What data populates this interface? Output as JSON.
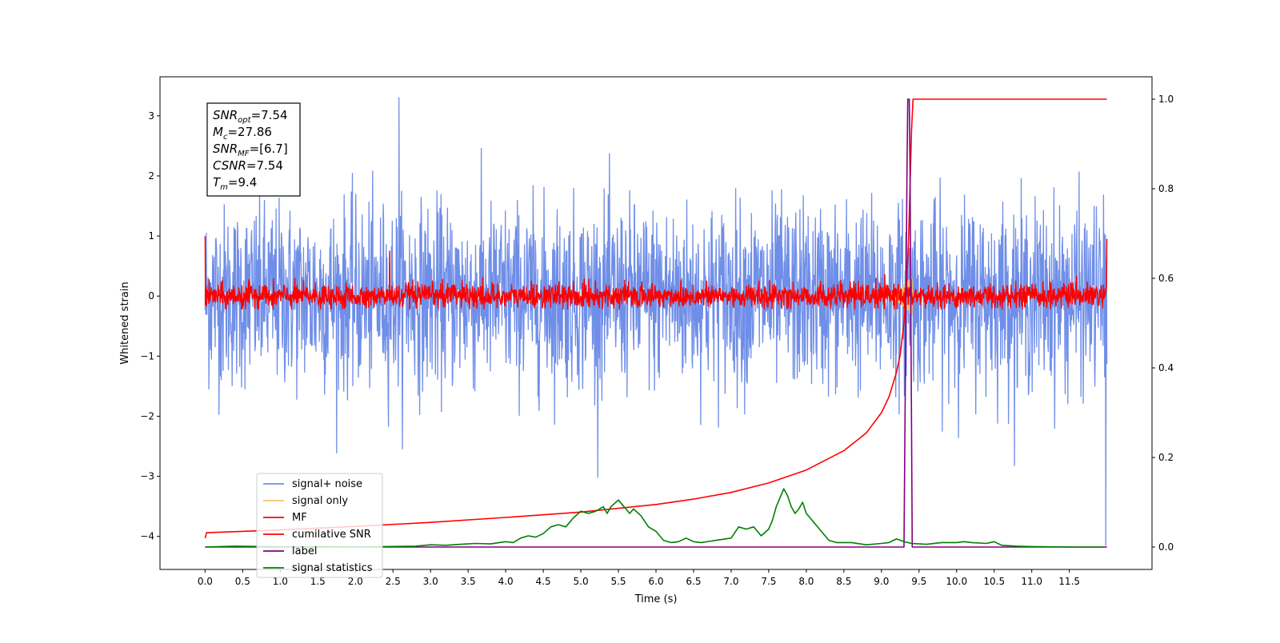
{
  "chart_data": {
    "type": "line",
    "title": "",
    "xlabel": "Time (s)",
    "ylabel": "Whitened strain",
    "xlim": [
      -0.6,
      12.6
    ],
    "ylim": [
      -4.55,
      3.65
    ],
    "y2lim": [
      -0.05,
      1.05
    ],
    "xticks": [
      0.0,
      0.5,
      1.0,
      1.5,
      2.0,
      2.5,
      3.0,
      3.5,
      4.0,
      4.5,
      5.0,
      5.5,
      6.0,
      6.5,
      7.0,
      7.5,
      8.0,
      8.5,
      9.0,
      9.5,
      10.0,
      10.5,
      11.0,
      11.5
    ],
    "xtick_labels": [
      "0.0",
      "0.5",
      "1.0",
      "1.5",
      "2.0",
      "2.5",
      "3.0",
      "3.5",
      "4.0",
      "4.5",
      "5.0",
      "5.5",
      "6.0",
      "6.5",
      "7.0",
      "7.5",
      "8.0",
      "8.5",
      "9.0",
      "9.5",
      "10.0",
      "10.5",
      "11.0",
      "11.5"
    ],
    "yticks": [
      -4,
      -3,
      -2,
      -1,
      0,
      1,
      2,
      3
    ],
    "ytick_labels": [
      "−4",
      "−3",
      "−2",
      "−1",
      "0",
      "1",
      "2",
      "3"
    ],
    "y2ticks": [
      0.0,
      0.2,
      0.4,
      0.6,
      0.8,
      1.0
    ],
    "y2tick_labels": [
      "0.0",
      "0.2",
      "0.4",
      "0.6",
      "0.8",
      "1.0"
    ],
    "grid": false,
    "legend_position": "bottom-left",
    "annotation": {
      "lines": [
        {
          "sym": "SNR",
          "sub": "opt",
          "val": "=7.54"
        },
        {
          "sym": "M",
          "sub": "c",
          "val": "=27.86"
        },
        {
          "sym": "SNR",
          "sub": "MF",
          "val": "=[6.7]"
        },
        {
          "sym": "CSNR",
          "sub": "",
          "val": "=7.54"
        },
        {
          "sym": "T",
          "sub": "m",
          "val": "=9.4"
        }
      ]
    },
    "series": [
      {
        "name": "signal+ noise",
        "axis": "left",
        "color": "#6f8ee8",
        "kind": "noise",
        "x_range": [
          0,
          12.0
        ],
        "std": 0.75,
        "max": 3.3,
        "min": -4.15
      },
      {
        "name": "signal only",
        "axis": "left",
        "color": "#f5c063",
        "kind": "chirp",
        "x_range": [
          9.0,
          9.42
        ],
        "peak_amplitude": 0.35
      },
      {
        "name": "MF",
        "axis": "left",
        "color": "#ff0000",
        "kind": "noise",
        "x_range": [
          0,
          12.0
        ],
        "std": 0.1,
        "max": 0.75,
        "min": -0.22,
        "start_value": 1.0,
        "end_value": 0.95
      },
      {
        "name": "cumilative SNR",
        "axis": "right",
        "color": "#ff0000",
        "kind": "line",
        "x": [
          0.0,
          0.02,
          1.0,
          2.0,
          3.0,
          4.0,
          5.0,
          6.0,
          6.5,
          7.0,
          7.5,
          8.0,
          8.5,
          8.8,
          9.0,
          9.1,
          9.2,
          9.25,
          9.3,
          9.33,
          9.36,
          9.38,
          9.4,
          9.42,
          12.0
        ],
        "y": [
          0.02,
          0.032,
          0.038,
          0.046,
          0.055,
          0.066,
          0.078,
          0.095,
          0.107,
          0.122,
          0.143,
          0.172,
          0.215,
          0.255,
          0.3,
          0.335,
          0.39,
          0.43,
          0.5,
          0.57,
          0.68,
          0.8,
          0.93,
          1.0,
          1.0
        ]
      },
      {
        "name": "label",
        "axis": "right",
        "color": "#800080",
        "kind": "line",
        "x": [
          0.0,
          9.28,
          9.3,
          9.34,
          9.35,
          9.37,
          9.38,
          9.41,
          12.0
        ],
        "y": [
          0.0,
          0.0,
          0.0,
          0.85,
          1.0,
          1.0,
          0.85,
          0.0,
          0.0
        ]
      },
      {
        "name": "signal statistics",
        "axis": "right",
        "color": "#008000",
        "kind": "line",
        "x": [
          0.0,
          0.2,
          0.4,
          0.8,
          1.2,
          1.6,
          2.0,
          2.4,
          2.8,
          3.0,
          3.2,
          3.4,
          3.6,
          3.8,
          4.0,
          4.1,
          4.2,
          4.3,
          4.4,
          4.5,
          4.6,
          4.7,
          4.8,
          4.85,
          4.9,
          5.0,
          5.1,
          5.2,
          5.3,
          5.35,
          5.4,
          5.5,
          5.55,
          5.6,
          5.65,
          5.7,
          5.8,
          5.9,
          6.0,
          6.1,
          6.2,
          6.3,
          6.4,
          6.5,
          6.6,
          6.8,
          7.0,
          7.1,
          7.2,
          7.3,
          7.4,
          7.5,
          7.55,
          7.6,
          7.65,
          7.7,
          7.75,
          7.8,
          7.85,
          7.9,
          7.95,
          8.0,
          8.1,
          8.2,
          8.3,
          8.4,
          8.6,
          8.8,
          9.0,
          9.1,
          9.2,
          9.3,
          9.4,
          9.6,
          9.8,
          10.0,
          10.1,
          10.2,
          10.4,
          10.5,
          10.6,
          10.8,
          11.0,
          11.5,
          11.95
        ],
        "y": [
          0.0,
          0.001,
          0.002,
          0.001,
          0.0,
          0.001,
          0.0,
          0.001,
          0.002,
          0.005,
          0.004,
          0.006,
          0.008,
          0.007,
          0.012,
          0.01,
          0.02,
          0.025,
          0.022,
          0.03,
          0.045,
          0.05,
          0.045,
          0.055,
          0.065,
          0.08,
          0.075,
          0.08,
          0.09,
          0.075,
          0.09,
          0.105,
          0.095,
          0.085,
          0.075,
          0.085,
          0.07,
          0.045,
          0.035,
          0.015,
          0.01,
          0.012,
          0.02,
          0.012,
          0.01,
          0.015,
          0.02,
          0.045,
          0.04,
          0.045,
          0.025,
          0.04,
          0.06,
          0.09,
          0.11,
          0.13,
          0.115,
          0.09,
          0.075,
          0.085,
          0.1,
          0.075,
          0.055,
          0.035,
          0.015,
          0.01,
          0.01,
          0.005,
          0.008,
          0.01,
          0.018,
          0.012,
          0.008,
          0.006,
          0.01,
          0.01,
          0.012,
          0.01,
          0.008,
          0.012,
          0.004,
          0.002,
          0.001,
          0.0,
          0.0
        ]
      }
    ]
  }
}
